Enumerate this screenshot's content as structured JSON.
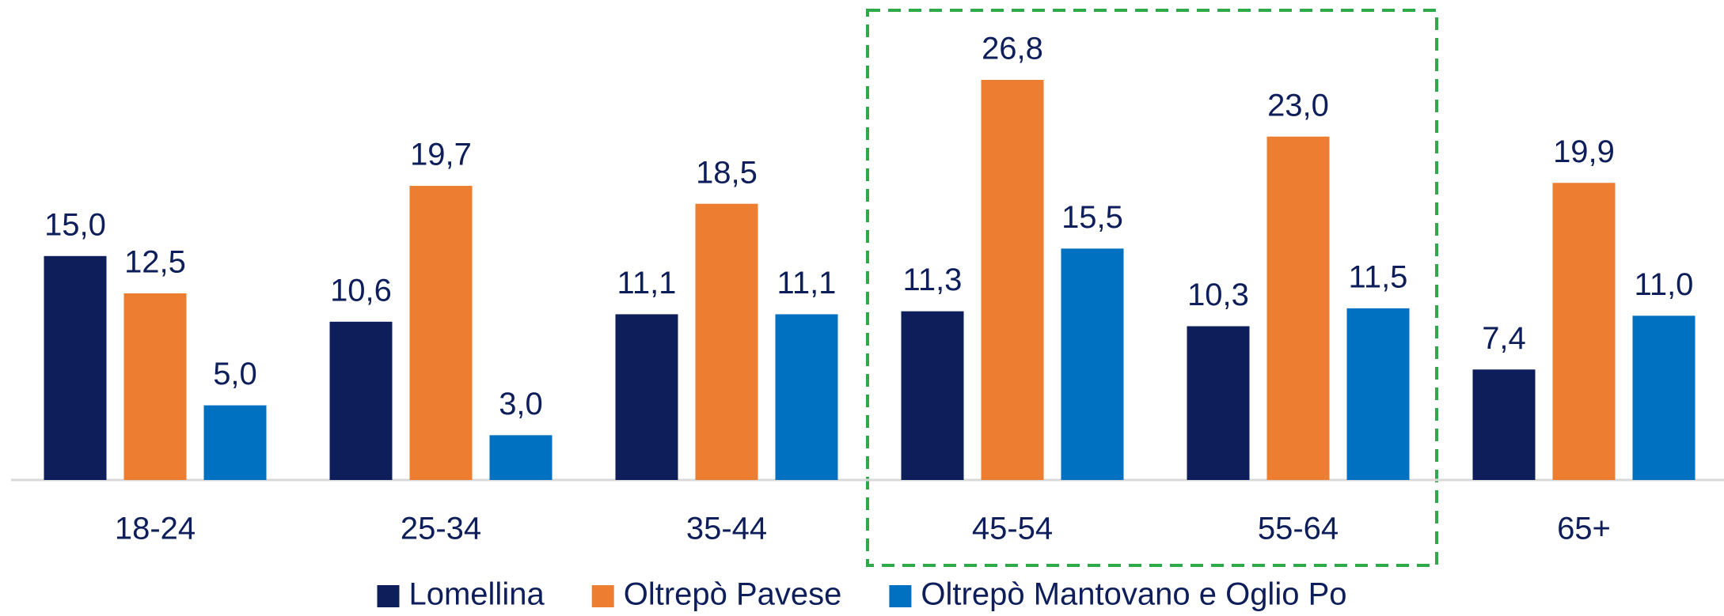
{
  "chart_data": {
    "type": "bar",
    "categories": [
      "18-24",
      "25-34",
      "35-44",
      "45-54",
      "55-64",
      "65+"
    ],
    "series": [
      {
        "name": "Lomellina",
        "color": "#0e1e5b",
        "values": [
          15.0,
          10.6,
          11.1,
          11.3,
          10.3,
          7.4
        ],
        "value_labels": [
          "15,0",
          "10,6",
          "11,1",
          "11,3",
          "10,3",
          "7,4"
        ]
      },
      {
        "name": "Oltrepò Pavese",
        "color": "#ed7d31",
        "values": [
          12.5,
          19.7,
          18.5,
          26.8,
          23.0,
          19.9
        ],
        "value_labels": [
          "12,5",
          "19,7",
          "18,5",
          "26,8",
          "23,0",
          "19,9"
        ]
      },
      {
        "name": "Oltrepò Mantovano e Oglio Po",
        "color": "#0070c0",
        "values": [
          5.0,
          3.0,
          11.1,
          15.5,
          11.5,
          11.0
        ],
        "value_labels": [
          "5,0",
          "3,0",
          "11,1",
          "15,5",
          "11,5",
          "11,0"
        ]
      }
    ],
    "legend": "bottom"
  }
}
